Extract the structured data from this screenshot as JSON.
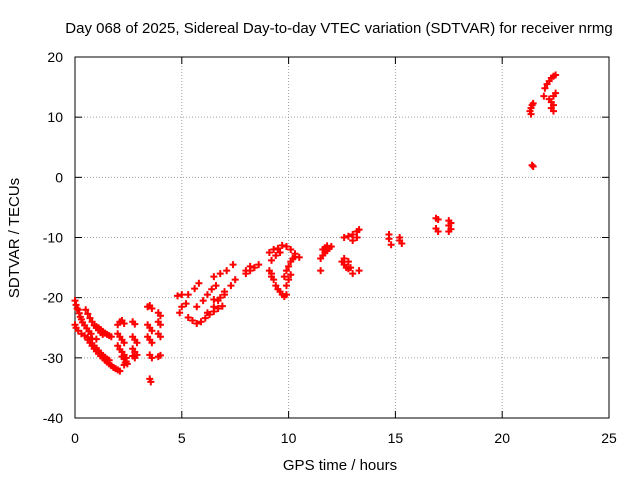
{
  "chart_data": {
    "type": "scatter",
    "title": "Day 068 of 2025, Sidereal Day-to-day VTEC variation (SDTVAR) for receiver nrmg",
    "xlabel": "GPS time / hours",
    "ylabel": "SDTVAR / TECUs",
    "xlim": [
      0,
      25
    ],
    "ylim": [
      -40,
      20
    ],
    "xticks": [
      "0",
      "5",
      "10",
      "15",
      "20",
      "25"
    ],
    "yticks": [
      "-40",
      "-30",
      "-20",
      "-10",
      "0",
      "10",
      "20"
    ],
    "grid": true,
    "marker": "plus",
    "color": "#ff0000",
    "series": [
      {
        "name": "SDTVAR",
        "points": [
          [
            0.0,
            -20.5
          ],
          [
            0.05,
            -21.2
          ],
          [
            0.1,
            -21.8
          ],
          [
            0.15,
            -22.0
          ],
          [
            0.2,
            -22.6
          ],
          [
            0.25,
            -23.2
          ],
          [
            0.3,
            -23.6
          ],
          [
            0.35,
            -24.1
          ],
          [
            0.45,
            -24.6
          ],
          [
            0.55,
            -25.1
          ],
          [
            0.65,
            -25.6
          ],
          [
            0.75,
            -26.0
          ],
          [
            0.0,
            -24.5
          ],
          [
            0.05,
            -25.0
          ],
          [
            0.15,
            -25.5
          ],
          [
            0.3,
            -26.0
          ],
          [
            0.45,
            -26.3
          ],
          [
            0.6,
            -26.6
          ],
          [
            0.8,
            -26.8
          ],
          [
            1.0,
            -26.9
          ],
          [
            0.5,
            -22.0
          ],
          [
            0.6,
            -22.7
          ],
          [
            0.7,
            -23.4
          ],
          [
            0.8,
            -24.0
          ],
          [
            0.9,
            -24.6
          ],
          [
            1.0,
            -25.0
          ],
          [
            1.1,
            -25.4
          ],
          [
            1.2,
            -25.8
          ],
          [
            1.3,
            -26.1
          ],
          [
            0.6,
            -27.0
          ],
          [
            0.7,
            -27.5
          ],
          [
            0.8,
            -28.0
          ],
          [
            0.9,
            -28.5
          ],
          [
            1.0,
            -28.9
          ],
          [
            1.1,
            -29.3
          ],
          [
            1.2,
            -29.7
          ],
          [
            1.3,
            -30.0
          ],
          [
            1.4,
            -30.4
          ],
          [
            1.5,
            -30.7
          ],
          [
            1.6,
            -31.0
          ],
          [
            1.7,
            -31.3
          ],
          [
            1.8,
            -31.6
          ],
          [
            1.9,
            -31.8
          ],
          [
            2.0,
            -32.0
          ],
          [
            2.1,
            -32.2
          ],
          [
            0.9,
            -28.0
          ],
          [
            1.0,
            -28.4
          ],
          [
            1.1,
            -28.8
          ],
          [
            1.2,
            -29.2
          ],
          [
            1.3,
            -29.6
          ],
          [
            1.4,
            -29.9
          ],
          [
            1.5,
            -30.2
          ],
          [
            1.6,
            -30.4
          ],
          [
            1.0,
            -24.8
          ],
          [
            1.1,
            -25.0
          ],
          [
            1.2,
            -25.3
          ],
          [
            1.3,
            -25.6
          ],
          [
            1.4,
            -25.9
          ],
          [
            1.5,
            -26.1
          ],
          [
            1.6,
            -26.3
          ],
          [
            1.7,
            -26.5
          ],
          [
            2.0,
            -24.5
          ],
          [
            2.1,
            -24.0
          ],
          [
            2.2,
            -23.8
          ],
          [
            2.3,
            -24.3
          ],
          [
            2.0,
            -26.0
          ],
          [
            2.1,
            -26.5
          ],
          [
            2.2,
            -27.0
          ],
          [
            2.3,
            -27.5
          ],
          [
            2.0,
            -28.0
          ],
          [
            2.1,
            -28.6
          ],
          [
            2.2,
            -29.0
          ],
          [
            2.3,
            -29.5
          ],
          [
            2.4,
            -30.0
          ],
          [
            2.35,
            -30.8
          ],
          [
            2.3,
            -31.2
          ],
          [
            2.2,
            -29.8
          ],
          [
            2.3,
            -30.2
          ],
          [
            2.4,
            -30.6
          ],
          [
            2.45,
            -31.0
          ],
          [
            2.7,
            -24.0
          ],
          [
            2.8,
            -24.4
          ],
          [
            2.7,
            -26.5
          ],
          [
            2.8,
            -27.0
          ],
          [
            2.9,
            -27.5
          ],
          [
            2.7,
            -28.5
          ],
          [
            2.8,
            -29.0
          ],
          [
            2.9,
            -29.5
          ],
          [
            2.8,
            -30.0
          ],
          [
            2.7,
            -29.7
          ],
          [
            3.4,
            -21.5
          ],
          [
            3.5,
            -21.3
          ],
          [
            3.6,
            -21.8
          ],
          [
            3.4,
            -24.5
          ],
          [
            3.5,
            -25.0
          ],
          [
            3.6,
            -25.5
          ],
          [
            3.4,
            -26.5
          ],
          [
            3.5,
            -27.0
          ],
          [
            3.6,
            -27.5
          ],
          [
            3.5,
            -29.5
          ],
          [
            3.6,
            -30.0
          ],
          [
            3.5,
            -33.5
          ],
          [
            3.55,
            -34.0
          ],
          [
            3.9,
            -22.5
          ],
          [
            4.0,
            -23.0
          ],
          [
            3.9,
            -24.0
          ],
          [
            4.0,
            -24.5
          ],
          [
            3.9,
            -26.0
          ],
          [
            4.0,
            -26.5
          ],
          [
            3.9,
            -29.8
          ],
          [
            4.0,
            -29.6
          ],
          [
            4.8,
            -19.7
          ],
          [
            5.0,
            -19.5
          ],
          [
            5.0,
            -21.5
          ],
          [
            5.2,
            -21.0
          ],
          [
            4.9,
            -22.5
          ],
          [
            5.3,
            -23.3
          ],
          [
            5.5,
            -23.8
          ],
          [
            5.7,
            -24.3
          ],
          [
            5.9,
            -24.0
          ],
          [
            6.1,
            -23.4
          ],
          [
            6.3,
            -22.8
          ],
          [
            6.5,
            -22.3
          ],
          [
            6.7,
            -21.8
          ],
          [
            6.9,
            -21.4
          ],
          [
            5.3,
            -19.5
          ],
          [
            5.6,
            -18.5
          ],
          [
            5.8,
            -17.6
          ],
          [
            5.7,
            -21.5
          ],
          [
            6.0,
            -20.5
          ],
          [
            6.2,
            -19.5
          ],
          [
            6.4,
            -18.6
          ],
          [
            6.6,
            -18.0
          ],
          [
            6.2,
            -22.5
          ],
          [
            6.5,
            -21.5
          ],
          [
            6.7,
            -20.5
          ],
          [
            7.0,
            -19.5
          ],
          [
            7.3,
            -18.0
          ],
          [
            7.5,
            -17.0
          ],
          [
            6.5,
            -20.3
          ],
          [
            6.8,
            -20.0
          ],
          [
            7.0,
            -19.0
          ],
          [
            6.5,
            -16.5
          ],
          [
            6.8,
            -16.0
          ],
          [
            7.1,
            -15.5
          ],
          [
            7.4,
            -14.5
          ],
          [
            8.0,
            -16.0
          ],
          [
            8.2,
            -15.5
          ],
          [
            8.4,
            -15.0
          ],
          [
            8.6,
            -14.5
          ],
          [
            8.2,
            -14.8
          ],
          [
            8.0,
            -15.5
          ],
          [
            9.1,
            -12.5
          ],
          [
            9.3,
            -12.0
          ],
          [
            9.5,
            -11.8
          ],
          [
            9.7,
            -11.3
          ],
          [
            9.9,
            -11.5
          ],
          [
            10.1,
            -12.0
          ],
          [
            10.3,
            -12.7
          ],
          [
            10.5,
            -13.3
          ],
          [
            9.2,
            -13.8
          ],
          [
            9.4,
            -13.0
          ],
          [
            9.6,
            -12.5
          ],
          [
            9.1,
            -15.5
          ],
          [
            9.2,
            -16.0
          ],
          [
            9.3,
            -17.0
          ],
          [
            9.2,
            -16.5
          ],
          [
            9.4,
            -18.0
          ],
          [
            9.5,
            -18.6
          ],
          [
            9.6,
            -19.0
          ],
          [
            9.7,
            -19.5
          ],
          [
            9.8,
            -19.8
          ],
          [
            9.9,
            -19.5
          ],
          [
            9.8,
            -16.5
          ],
          [
            9.9,
            -15.5
          ],
          [
            10.0,
            -14.8
          ],
          [
            10.1,
            -14.0
          ],
          [
            10.2,
            -13.5
          ],
          [
            10.3,
            -13.2
          ],
          [
            9.9,
            -18.0
          ],
          [
            10.0,
            -17.0
          ],
          [
            10.1,
            -16.2
          ],
          [
            11.5,
            -15.5
          ],
          [
            11.5,
            -13.5
          ],
          [
            11.6,
            -13.0
          ],
          [
            11.7,
            -12.5
          ],
          [
            11.8,
            -12.2
          ],
          [
            11.9,
            -11.8
          ],
          [
            12.0,
            -11.5
          ],
          [
            11.6,
            -12.0
          ],
          [
            11.7,
            -11.7
          ],
          [
            11.8,
            -11.4
          ],
          [
            12.5,
            -14.0
          ],
          [
            12.6,
            -14.5
          ],
          [
            12.7,
            -15.0
          ],
          [
            12.8,
            -15.2
          ],
          [
            12.9,
            -15.0
          ],
          [
            12.6,
            -10.0
          ],
          [
            12.8,
            -9.8
          ],
          [
            13.0,
            -9.5
          ],
          [
            13.2,
            -9.0
          ],
          [
            13.3,
            -8.7
          ],
          [
            13.0,
            -10.5
          ],
          [
            13.2,
            -10.0
          ],
          [
            13.0,
            -16.0
          ],
          [
            13.3,
            -15.5
          ],
          [
            12.6,
            -13.5
          ],
          [
            12.8,
            -14.0
          ],
          [
            14.7,
            -9.5
          ],
          [
            14.7,
            -10.2
          ],
          [
            14.8,
            -11.2
          ],
          [
            15.2,
            -10.0
          ],
          [
            15.2,
            -10.5
          ],
          [
            15.3,
            -11.0
          ],
          [
            16.9,
            -6.8
          ],
          [
            17.0,
            -7.0
          ],
          [
            16.9,
            -8.5
          ],
          [
            17.0,
            -9.0
          ],
          [
            17.5,
            -7.2
          ],
          [
            17.6,
            -7.6
          ],
          [
            17.5,
            -8.0
          ],
          [
            17.6,
            -8.6
          ],
          [
            17.5,
            -9.0
          ],
          [
            21.4,
            2.0
          ],
          [
            21.45,
            1.8
          ],
          [
            21.3,
            11.0
          ],
          [
            21.35,
            11.5
          ],
          [
            21.4,
            12.0
          ],
          [
            21.45,
            12.3
          ],
          [
            21.35,
            10.5
          ],
          [
            21.95,
            13.5
          ],
          [
            22.0,
            14.8
          ],
          [
            22.1,
            15.5
          ],
          [
            22.2,
            16.0
          ],
          [
            22.3,
            16.5
          ],
          [
            22.4,
            16.8
          ],
          [
            22.5,
            17.0
          ],
          [
            22.2,
            13.0
          ],
          [
            22.3,
            12.5
          ],
          [
            22.4,
            12.0
          ],
          [
            22.4,
            13.5
          ],
          [
            22.5,
            14.0
          ],
          [
            22.3,
            11.5
          ],
          [
            22.4,
            11.0
          ]
        ]
      }
    ]
  }
}
